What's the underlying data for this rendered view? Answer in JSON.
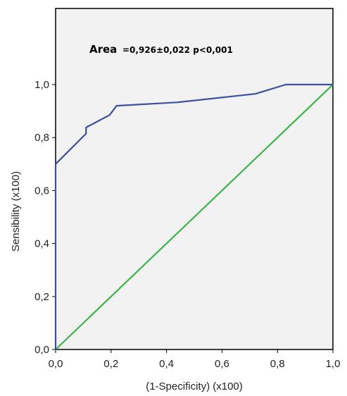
{
  "chart_data": {
    "type": "line",
    "title": "",
    "xlabel": "(1-Specificity) (x100)",
    "ylabel": "Sensibility (x100)",
    "xlim": [
      0,
      1
    ],
    "ylim": [
      0,
      1
    ],
    "x_ticks": [
      "0,0",
      "0,2",
      "0,4",
      "0,6",
      "0,8",
      "1,0"
    ],
    "y_ticks": [
      "0,0",
      "0,2",
      "0,4",
      "0,6",
      "0,8",
      "1,0"
    ],
    "annotation": {
      "label": "Area",
      "value": "=0,926±0,022  p<0,001"
    },
    "grid": false,
    "legend": "none",
    "plot_background": "#f2f2f2",
    "series": [
      {
        "color": "#3d50a0",
        "points": [
          [
            0.0,
            0.0
          ],
          [
            0.0,
            0.7
          ],
          [
            0.11,
            0.815
          ],
          [
            0.11,
            0.838
          ],
          [
            0.195,
            0.885
          ],
          [
            0.22,
            0.92
          ],
          [
            0.44,
            0.933
          ],
          [
            0.72,
            0.965
          ],
          [
            0.83,
            1.0
          ],
          [
            1.0,
            1.0
          ]
        ]
      },
      {
        "color": "#3cb44b",
        "points": [
          [
            0.0,
            0.0
          ],
          [
            1.0,
            1.0
          ]
        ]
      }
    ]
  }
}
